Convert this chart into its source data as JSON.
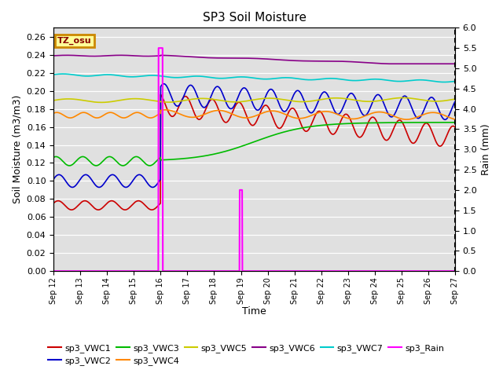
{
  "title": "SP3 Soil Moisture",
  "xlabel": "Time",
  "ylabel_left": "Soil Moisture (m3/m3)",
  "ylabel_right": "Rain (mm)",
  "ylim_left": [
    0.0,
    0.27
  ],
  "ylim_right": [
    0.0,
    6.0
  ],
  "yticks_left": [
    0.0,
    0.02,
    0.04,
    0.06,
    0.08,
    0.1,
    0.12,
    0.14,
    0.16,
    0.18,
    0.2,
    0.22,
    0.24,
    0.26
  ],
  "yticks_right": [
    0.0,
    0.5,
    1.0,
    1.5,
    2.0,
    2.5,
    3.0,
    3.5,
    4.0,
    4.5,
    5.0,
    5.5,
    6.0
  ],
  "bg_color": "#e0e0e0",
  "series": {
    "sp3_VWC1": {
      "color": "#cc0000",
      "linewidth": 1.2
    },
    "sp3_VWC2": {
      "color": "#0000cc",
      "linewidth": 1.2
    },
    "sp3_VWC3": {
      "color": "#00bb00",
      "linewidth": 1.2
    },
    "sp3_VWC4": {
      "color": "#ff8800",
      "linewidth": 1.2
    },
    "sp3_VWC5": {
      "color": "#cccc00",
      "linewidth": 1.2
    },
    "sp3_VWC6": {
      "color": "#880088",
      "linewidth": 1.2
    },
    "sp3_VWC7": {
      "color": "#00cccc",
      "linewidth": 1.2
    },
    "sp3_Rain": {
      "color": "#ff00ff",
      "linewidth": 1.5
    }
  },
  "legend_box_facecolor": "#ffff99",
  "legend_box_edgecolor": "#cc8800",
  "rain_event1_day": 4,
  "rain_event1_mm": 5.5,
  "rain_event2_day": 7,
  "rain_event2_mm": 2.0
}
